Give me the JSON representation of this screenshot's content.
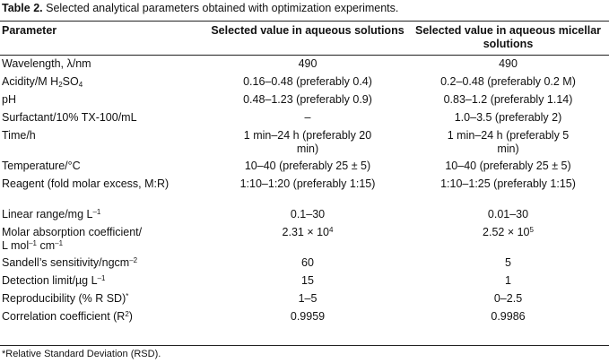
{
  "caption": {
    "label": "Table 2.",
    "text": "Selected analytical parameters obtained with optimization experiments."
  },
  "table": {
    "headers": {
      "parameter": "Parameter",
      "aqueous": "Selected value in aqueous solutions",
      "micellar": "Selected value in aqueous micellar solutions"
    },
    "rows": [
      {
        "param": "Wavelength, λ/nm",
        "aq": "490",
        "mic": "490"
      },
      {
        "param_pre": "Acidity/M H",
        "param_sub": "2",
        "param_post": "SO",
        "param_sub2": "4",
        "aq": "0.16–0.48 (preferably 0.4)",
        "mic": "0.2–0.48 (preferably 0.2 M)"
      },
      {
        "param": "pH",
        "aq": "0.48–1.23 (preferably 0.9)",
        "mic": "0.83–1.2 (preferably 1.14)"
      },
      {
        "param": "Surfactant/10% TX-100/mL",
        "aq": "–",
        "mic": "1.0–3.5 (preferably 2)"
      },
      {
        "param": "Time/h",
        "aq": "1 min–24 h (preferably 20 min)",
        "mic": "1 min–24 h (preferably 5 min)"
      },
      {
        "param": "Temperature/°C",
        "aq": "10–40 (preferably 25 ± 5)",
        "mic": "10–40 (preferably 25 ± 5)"
      },
      {
        "param": "Reagent (fold molar excess, M:R)",
        "aq": "1:10–1:20 (preferably 1:15)",
        "mic": "1:10–1:25 (preferably 1:15)"
      },
      {
        "param_pre": "Linear range/mg L",
        "param_sup": "–1",
        "aq": "0.1–30",
        "mic": "0.01–30"
      },
      {
        "param_line1": "Molar absorption coefficient/",
        "param_line2_pre": "L mol",
        "param_line2_sup1": "–1",
        "param_line2_mid": " cm",
        "param_line2_sup2": "–1",
        "aq_pre": "2.31 × 10",
        "aq_sup": "4",
        "mic_pre": "2.52 × 10",
        "mic_sup": "5"
      },
      {
        "param_pre": "Sandell’s sensitivity/ngcm",
        "param_sup": "–2",
        "aq": "60",
        "mic": "5"
      },
      {
        "param_pre": "Detection limit/µg L",
        "param_sup": "–1",
        "aq": "15",
        "mic": "1"
      },
      {
        "param_pre": "Reproducibility (% R SD)",
        "param_sup": "*",
        "aq": "1–5",
        "mic": "0–2.5"
      },
      {
        "param_pre": "Correlation coefficient (R",
        "param_sup": "2",
        "param_post": ")",
        "aq": "0.9959",
        "mic": "0.9986"
      }
    ]
  },
  "footnote": "*Relative Standard Deviation (RSD)."
}
